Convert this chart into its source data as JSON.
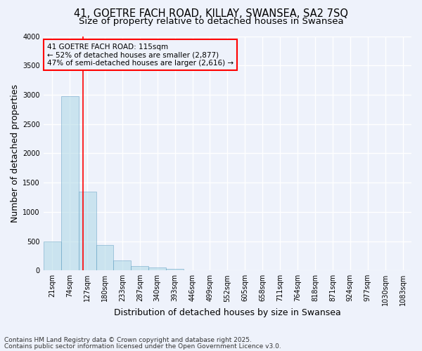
{
  "title_line1": "41, GOETRE FACH ROAD, KILLAY, SWANSEA, SA2 7SQ",
  "title_line2": "Size of property relative to detached houses in Swansea",
  "xlabel": "Distribution of detached houses by size in Swansea",
  "ylabel": "Number of detached properties",
  "categories": [
    "21sqm",
    "74sqm",
    "127sqm",
    "180sqm",
    "233sqm",
    "287sqm",
    "340sqm",
    "393sqm",
    "446sqm",
    "499sqm",
    "552sqm",
    "605sqm",
    "658sqm",
    "711sqm",
    "764sqm",
    "818sqm",
    "871sqm",
    "924sqm",
    "977sqm",
    "1030sqm",
    "1083sqm"
  ],
  "values": [
    500,
    2980,
    1340,
    430,
    165,
    80,
    45,
    28,
    5,
    0,
    0,
    0,
    0,
    0,
    0,
    0,
    0,
    0,
    0,
    0,
    0
  ],
  "bar_color": "#add8e6",
  "bar_edge_color": "#5a9abf",
  "bar_alpha": 0.55,
  "ylim": [
    0,
    4000
  ],
  "yticks": [
    0,
    500,
    1000,
    1500,
    2000,
    2500,
    3000,
    3500,
    4000
  ],
  "annotation_line1": "41 GOETRE FACH ROAD: 115sqm",
  "annotation_line2": "← 52% of detached houses are smaller (2,877)",
  "annotation_line3": "47% of semi-detached houses are larger (2,616) →",
  "footer_line1": "Contains HM Land Registry data © Crown copyright and database right 2025.",
  "footer_line2": "Contains public sector information licensed under the Open Government Licence v3.0.",
  "background_color": "#eef2fb",
  "grid_color": "#ffffff",
  "title_fontsize": 10.5,
  "subtitle_fontsize": 9.5,
  "axis_label_fontsize": 9,
  "tick_fontsize": 7,
  "annotation_fontsize": 7.5,
  "footer_fontsize": 6.5
}
